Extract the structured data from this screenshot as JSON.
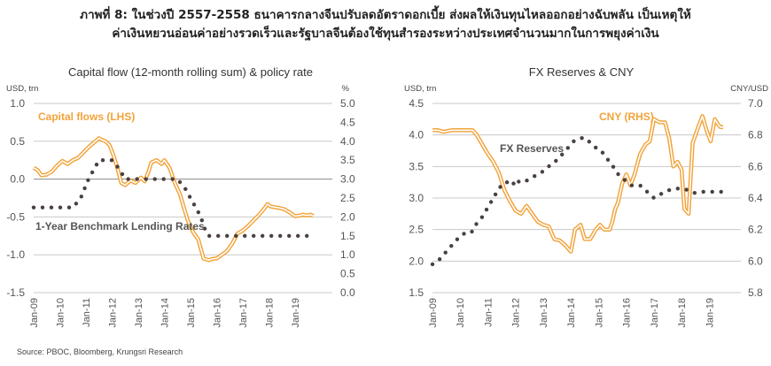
{
  "header": {
    "line1": "ภาพที่ 8: ในช่วงปี 2557-2558 ธนาคารกลางจีนปรับลดอัตราดอกเบี้ย ส่งผลให้เงินทุนไหลออกอย่างฉับพลัน เป็นเหตุให้",
    "line2": "ค่าเงินหยวนอ่อนค่าอย่างรวดเร็วและรัฐบาลจีนต้องใช้ทุนสำรองระหว่างประเทศจำนวนมากในการพยุงค่าเงิน"
  },
  "source": "Source: PBOC, Bloomberg, Krungsri Research",
  "colors": {
    "orange": "#F2A33A",
    "dots": "#4a4040",
    "grid": "#c8c8c8",
    "zero": "#888888"
  },
  "chart_data": [
    {
      "type": "line",
      "title": "Capital flow (12-month rolling sum) & policy rate",
      "ylabel": "USD, trn",
      "y2label": "%",
      "ylim": [
        -1.5,
        1.0
      ],
      "y2lim": [
        0.0,
        5.0
      ],
      "yticks": [
        "1.0",
        "0.5",
        "0.0",
        "-0.5",
        "-1.0",
        "-1.5"
      ],
      "y2ticks": [
        "5.0",
        "4.5",
        "4.0",
        "3.5",
        "3.0",
        "2.5",
        "2.0",
        "1.5",
        "1.0",
        "0.5",
        "0.0"
      ],
      "xticks": [
        "Jan-09",
        "Jan-10",
        "Jan-11",
        "Jan-12",
        "Jan-13",
        "Jan-14",
        "Jan-15",
        "Jan-16",
        "Jan-17",
        "Jan-18",
        "Jan-19"
      ],
      "xrange": [
        2009.0,
        2019.75
      ],
      "annotations": [
        "Capital flows (LHS)",
        "1-Year Benchmark Lending Rates"
      ],
      "series": [
        {
          "name": "Capital flows (LHS)",
          "axis": "left",
          "style": "double-line",
          "x": [
            2009.0,
            2009.15,
            2009.3,
            2009.5,
            2009.7,
            2009.9,
            2010.1,
            2010.3,
            2010.5,
            2010.7,
            2010.9,
            2011.1,
            2011.3,
            2011.5,
            2011.6,
            2011.75,
            2011.9,
            2012.05,
            2012.2,
            2012.35,
            2012.5,
            2012.7,
            2012.9,
            2013.1,
            2013.25,
            2013.4,
            2013.5,
            2013.7,
            2013.9,
            2014.0,
            2014.2,
            2014.4,
            2014.6,
            2014.75,
            2014.9,
            2015.1,
            2015.3,
            2015.5,
            2015.7,
            2015.9,
            2016.0,
            2016.2,
            2016.4,
            2016.6,
            2016.8,
            2017.0,
            2017.2,
            2017.4,
            2017.6,
            2017.8,
            2017.95,
            2018.05,
            2018.2,
            2018.4,
            2018.6,
            2018.8,
            2019.0,
            2019.2,
            2019.3,
            2019.45,
            2019.6,
            2019.7
          ],
          "y": [
            0.15,
            0.12,
            0.05,
            0.06,
            0.1,
            0.18,
            0.24,
            0.2,
            0.25,
            0.28,
            0.35,
            0.42,
            0.48,
            0.54,
            0.52,
            0.5,
            0.45,
            0.32,
            0.15,
            -0.05,
            -0.08,
            -0.02,
            -0.05,
            0.02,
            -0.03,
            0.1,
            0.22,
            0.25,
            0.2,
            0.25,
            0.15,
            -0.05,
            -0.2,
            -0.38,
            -0.55,
            -0.7,
            -0.8,
            -1.05,
            -1.07,
            -1.05,
            -1.05,
            -1.0,
            -0.95,
            -0.85,
            -0.72,
            -0.68,
            -0.62,
            -0.55,
            -0.48,
            -0.4,
            -0.33,
            -0.36,
            -0.37,
            -0.38,
            -0.4,
            -0.44,
            -0.49,
            -0.48,
            -0.47,
            -0.48,
            -0.47,
            -0.49
          ]
        },
        {
          "name": "1-Year Benchmark Lending Rates",
          "axis": "right",
          "style": "dotted",
          "x": [
            2009.0,
            2009.3,
            2009.6,
            2009.9,
            2010.2,
            2010.5,
            2010.8,
            2010.95,
            2011.1,
            2011.3,
            2011.5,
            2011.7,
            2012.0,
            2012.3,
            2012.5,
            2012.7,
            2013.0,
            2013.5,
            2014.0,
            2014.5,
            2014.8,
            2015.0,
            2015.2,
            2015.4,
            2015.5,
            2015.7,
            2015.9,
            2016.5,
            2017.0,
            2018.0,
            2019.0,
            2019.7
          ],
          "y": [
            2.25,
            2.25,
            2.25,
            2.25,
            2.25,
            2.25,
            2.5,
            2.75,
            3.0,
            3.25,
            3.5,
            3.5,
            3.5,
            3.25,
            3.0,
            3.0,
            3.0,
            3.0,
            3.0,
            3.0,
            2.75,
            2.5,
            2.25,
            2.0,
            1.75,
            1.5,
            1.5,
            1.5,
            1.5,
            1.5,
            1.5,
            1.5
          ]
        }
      ]
    },
    {
      "type": "line",
      "title": "FX Reserves & CNY",
      "ylabel": "USD, trn",
      "y2label": "CNY/USD",
      "ylim": [
        1.5,
        4.5
      ],
      "y2lim": [
        5.8,
        7.0
      ],
      "yticks": [
        "4.5",
        "4.0",
        "3.5",
        "3.0",
        "2.5",
        "2.0",
        "1.5"
      ],
      "y2ticks": [
        "7.0",
        "6.8",
        "6.6",
        "6.4",
        "6.2",
        "6.0",
        "5.8"
      ],
      "xticks": [
        "Jan-09",
        "Jan-10",
        "Jan-11",
        "Jan-12",
        "Jan-13",
        "Jan-14",
        "Jan-15",
        "Jan-16",
        "Jan-17",
        "Jan-18",
        "Jan-19"
      ],
      "xrange": [
        2009.0,
        2019.5
      ],
      "annotations": [
        "CNY (RHS)",
        "FX Reserves"
      ],
      "series": [
        {
          "name": "CNY (RHS)",
          "axis": "right",
          "style": "double-line",
          "x": [
            2009.0,
            2009.2,
            2009.4,
            2009.7,
            2010.0,
            2010.3,
            2010.45,
            2010.6,
            2010.8,
            2011.0,
            2011.2,
            2011.4,
            2011.6,
            2011.8,
            2012.0,
            2012.2,
            2012.4,
            2012.6,
            2012.8,
            2013.0,
            2013.2,
            2013.4,
            2013.6,
            2013.8,
            2014.0,
            2014.15,
            2014.35,
            2014.5,
            2014.7,
            2014.9,
            2015.05,
            2015.2,
            2015.4,
            2015.5,
            2015.6,
            2015.7,
            2015.85,
            2016.0,
            2016.15,
            2016.3,
            2016.5,
            2016.7,
            2016.85,
            2017.0,
            2017.2,
            2017.4,
            2017.55,
            2017.7,
            2017.85,
            2018.0,
            2018.1,
            2018.25,
            2018.4,
            2018.6,
            2018.75,
            2018.9,
            2019.05,
            2019.2,
            2019.3,
            2019.4,
            2019.5
          ],
          "y": [
            6.83,
            6.83,
            6.82,
            6.83,
            6.83,
            6.83,
            6.83,
            6.8,
            6.74,
            6.68,
            6.63,
            6.56,
            6.45,
            6.38,
            6.32,
            6.3,
            6.35,
            6.3,
            6.25,
            6.23,
            6.22,
            6.14,
            6.13,
            6.1,
            6.06,
            6.2,
            6.23,
            6.14,
            6.14,
            6.2,
            6.23,
            6.2,
            6.2,
            6.25,
            6.33,
            6.37,
            6.49,
            6.55,
            6.48,
            6.55,
            6.68,
            6.74,
            6.76,
            6.9,
            6.88,
            6.88,
            6.78,
            6.6,
            6.63,
            6.58,
            6.33,
            6.3,
            6.75,
            6.85,
            6.92,
            6.83,
            6.76,
            6.9,
            6.87,
            6.85,
            6.85
          ]
        },
        {
          "name": "FX Reserves",
          "axis": "left",
          "style": "dotted",
          "x": [
            2009.0,
            2009.2,
            2009.4,
            2009.6,
            2009.8,
            2010.0,
            2010.2,
            2010.4,
            2010.6,
            2010.8,
            2011.0,
            2011.2,
            2011.4,
            2011.6,
            2011.75,
            2011.9,
            2012.0,
            2012.15,
            2012.3,
            2012.5,
            2012.7,
            2012.9,
            2013.1,
            2013.3,
            2013.5,
            2013.7,
            2013.9,
            2014.1,
            2014.35,
            2014.55,
            2014.75,
            2014.9,
            2015.1,
            2015.25,
            2015.45,
            2015.6,
            2015.75,
            2015.9,
            2016.2,
            2016.5,
            2016.75,
            2017.0,
            2017.2,
            2017.4,
            2017.7,
            2017.95,
            2018.2,
            2018.45,
            2018.7,
            2018.95,
            2019.2,
            2019.45
          ],
          "y": [
            1.95,
            2.0,
            2.1,
            2.2,
            2.3,
            2.4,
            2.45,
            2.45,
            2.6,
            2.7,
            2.85,
            3.0,
            3.15,
            3.25,
            3.25,
            3.2,
            3.3,
            3.25,
            3.25,
            3.3,
            3.35,
            3.4,
            3.45,
            3.55,
            3.6,
            3.7,
            3.8,
            3.9,
            3.95,
            3.95,
            3.85,
            3.8,
            3.75,
            3.65,
            3.55,
            3.45,
            3.35,
            3.3,
            3.2,
            3.2,
            3.1,
            3.0,
            3.05,
            3.1,
            3.15,
            3.15,
            3.13,
            3.08,
            3.1,
            3.1,
            3.1,
            3.1
          ]
        }
      ]
    }
  ]
}
